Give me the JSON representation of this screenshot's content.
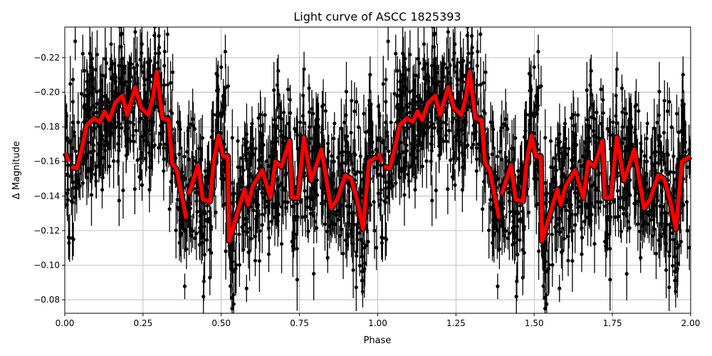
{
  "chart_data": {
    "type": "scatter",
    "title": "Light curve of ASCC 1825393",
    "xlabel": "Phase",
    "ylabel": "Δ Magnitude",
    "xlim": [
      0,
      2
    ],
    "ylim": [
      -0.0722,
      -0.2377
    ],
    "y_inverted": true,
    "grid": true,
    "xticks": [
      "0.00",
      "0.25",
      "0.50",
      "0.75",
      "1.00",
      "1.25",
      "1.50",
      "1.75",
      "2.00"
    ],
    "xtick_values": [
      0,
      0.25,
      0.5,
      0.75,
      1,
      1.25,
      1.5,
      1.75,
      2
    ],
    "yticks": [
      "−0.22",
      "−0.20",
      "−0.18",
      "−0.16",
      "−0.14",
      "−0.12",
      "−0.10",
      "−0.08"
    ],
    "ytick_values": [
      -0.22,
      -0.2,
      -0.18,
      -0.16,
      -0.14,
      -0.12,
      -0.1,
      -0.08
    ],
    "observations": {
      "color": "#000000",
      "marker": "point with error bar",
      "n_per_cycle": 1100,
      "scatter_sigma": 0.022,
      "errorbar_typical": 0.012,
      "note": "points fold over phase 0–1 and repeat for phase 1–2"
    },
    "model_curve": {
      "color": "#ff0000",
      "outline": "#000000",
      "period_repeat": 1,
      "segments": [
        [
          [
            0.002,
            -0.165
          ],
          [
            0.013,
            -0.16
          ]
        ],
        [
          [
            0.02,
            -0.157
          ],
          [
            0.039,
            -0.156
          ],
          [
            0.055,
            -0.168
          ],
          [
            0.07,
            -0.181
          ],
          [
            0.093,
            -0.185
          ],
          [
            0.111,
            -0.183
          ],
          [
            0.127,
            -0.189
          ],
          [
            0.142,
            -0.184
          ],
          [
            0.161,
            -0.194
          ],
          [
            0.184,
            -0.198
          ],
          [
            0.199,
            -0.187
          ],
          [
            0.225,
            -0.203
          ],
          [
            0.244,
            -0.191
          ],
          [
            0.267,
            -0.187
          ],
          [
            0.282,
            -0.197
          ],
          [
            0.294,
            -0.212
          ],
          [
            0.312,
            -0.185
          ],
          [
            0.332,
            -0.184
          ],
          [
            0.343,
            -0.159
          ],
          [
            0.358,
            -0.155
          ],
          [
            0.373,
            -0.141
          ],
          [
            0.388,
            -0.127
          ]
        ],
        [
          [
            0.396,
            -0.141
          ],
          [
            0.426,
            -0.158
          ],
          [
            0.441,
            -0.138
          ],
          [
            0.464,
            -0.137
          ],
          [
            0.476,
            -0.16
          ],
          [
            0.491,
            -0.175
          ],
          [
            0.506,
            -0.163
          ],
          [
            0.521,
            -0.163
          ],
          [
            0.525,
            -0.114
          ],
          [
            0.548,
            -0.128
          ],
          [
            0.574,
            -0.144
          ],
          [
            0.585,
            -0.135
          ],
          [
            0.601,
            -0.146
          ],
          [
            0.631,
            -0.155
          ],
          [
            0.657,
            -0.139
          ],
          [
            0.673,
            -0.16
          ],
          [
            0.692,
            -0.157
          ],
          [
            0.718,
            -0.172
          ],
          [
            0.726,
            -0.139
          ],
          [
            0.745,
            -0.139
          ],
          [
            0.764,
            -0.174
          ],
          [
            0.787,
            -0.149
          ],
          [
            0.802,
            -0.157
          ],
          [
            0.82,
            -0.167
          ],
          [
            0.851,
            -0.133
          ],
          [
            0.87,
            -0.138
          ],
          [
            0.896,
            -0.152
          ],
          [
            0.915,
            -0.15
          ],
          [
            0.934,
            -0.138
          ],
          [
            0.953,
            -0.121
          ],
          [
            0.972,
            -0.16
          ],
          [
            1.0,
            -0.163
          ]
        ]
      ]
    }
  }
}
